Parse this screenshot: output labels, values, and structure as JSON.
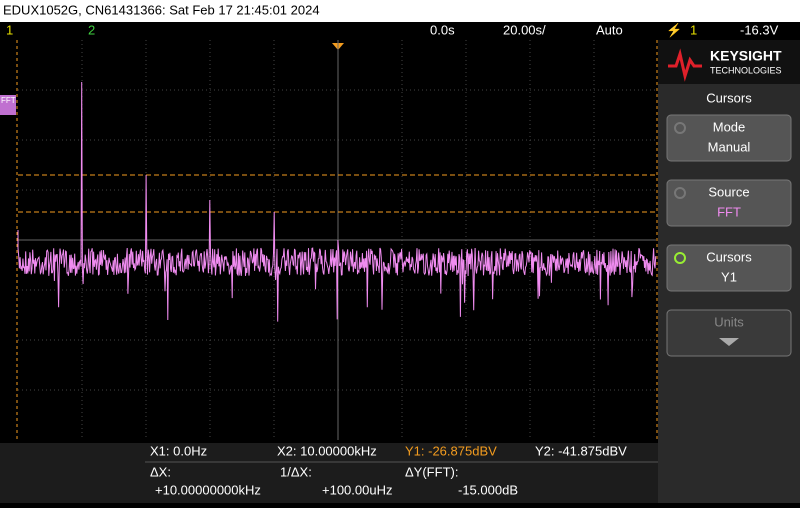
{
  "header": {
    "title": "EDUX1052G, CN61431366: Sat Feb 17 21:45:01 2024"
  },
  "status": {
    "ch1": "1",
    "ch2": "2",
    "delay": "0.0s",
    "timebase": "20.00s/",
    "trigger_mode": "Auto",
    "trigger_source": "1",
    "trigger_level": "-16.3V"
  },
  "screen": {
    "fft_marker": "FFT"
  },
  "panel": {
    "brand": "KEYSIGHT",
    "brand_sub": "TECHNOLOGIES",
    "menu_title": "Cursors",
    "buttons": [
      {
        "label": "Mode",
        "value": "Manual"
      },
      {
        "label": "Source",
        "value": "FFT"
      },
      {
        "label": "Cursors",
        "value": "Y1"
      },
      {
        "label": "Units"
      }
    ]
  },
  "readout": {
    "x1": "X1:  0.0Hz",
    "x2": "X2:  10.00000kHz",
    "y1": "Y1: -26.875dBV",
    "y2": "Y2: -41.875dBV",
    "dx_label": "ΔX:",
    "dx_value": "+10.00000000kHz",
    "inv_dx_label": "1/ΔX:",
    "inv_dx_value": "+100.00uHz",
    "dy_label": "ΔY(FFT):",
    "dy_value": "-15.000dB"
  }
}
